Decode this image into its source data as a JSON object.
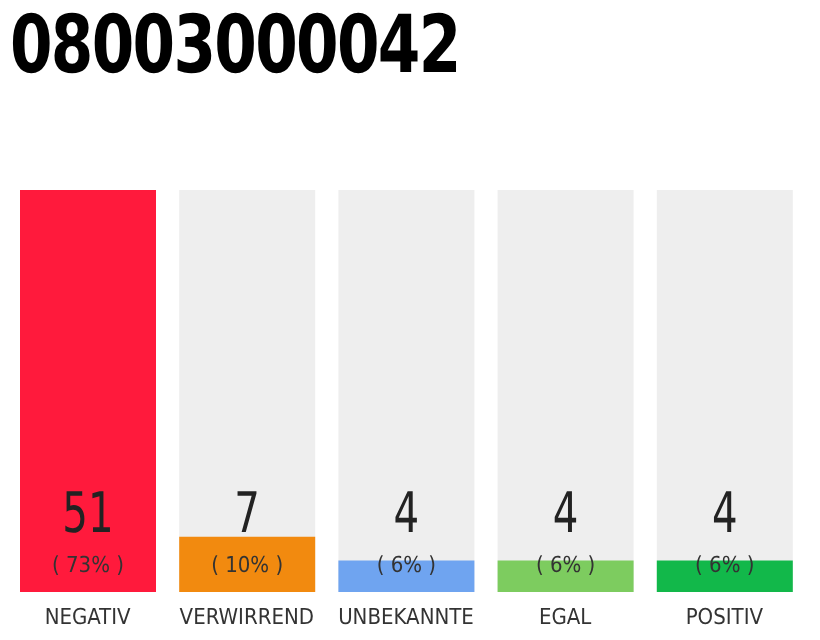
{
  "chart_data": {
    "type": "bar",
    "title": "08003000042",
    "categories": [
      "NEGATIV",
      "VERWIRREND",
      "UNBEKANNTE",
      "EGAL",
      "POSITIV"
    ],
    "values": [
      51,
      7,
      4,
      4,
      4
    ],
    "colors": [
      "#ff1a3c",
      "#f28a0f",
      "#6fa4f0",
      "#7dcc5f",
      "#12b84a"
    ],
    "ylim": [
      0,
      51
    ],
    "tick_labels": "x",
    "data_labels": true,
    "grid": false,
    "legend": false,
    "annotations": [
      "( 73% )",
      "( 10% )",
      "( 6% )",
      "( 6% )",
      "( 6% )"
    ]
  }
}
